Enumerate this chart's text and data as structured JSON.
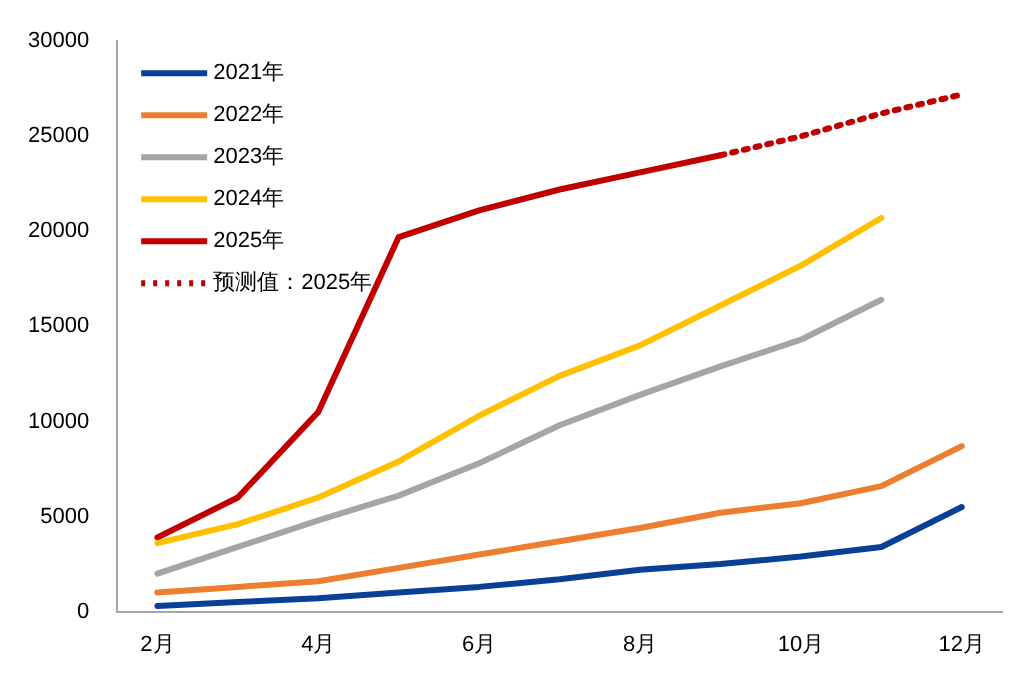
{
  "chart_data": {
    "type": "line",
    "categories": [
      "2月",
      null,
      "4月",
      null,
      "6月",
      null,
      "8月",
      null,
      "10月",
      null,
      "12月"
    ],
    "ylim": [
      0,
      30000
    ],
    "yticks": [
      0,
      5000,
      10000,
      15000,
      20000,
      25000,
      30000
    ],
    "grid": false,
    "legend": "top left",
    "marker": "none",
    "series": [
      {
        "name": "2021年",
        "color": "#0a3f96",
        "values": [
          300,
          500,
          700,
          1000,
          1300,
          1700,
          2200,
          2500,
          2900,
          3400,
          5500
        ]
      },
      {
        "name": "2022年",
        "color": "#ed7d31",
        "values": [
          1000,
          1300,
          1600,
          2300,
          3000,
          3700,
          4400,
          5200,
          5700,
          6600,
          8700
        ]
      },
      {
        "name": "2023年",
        "color": "#a5a5a5",
        "values": [
          2000,
          3400,
          4800,
          6100,
          7800,
          9800,
          11400,
          12900,
          14300,
          16400,
          null
        ]
      },
      {
        "name": "2024年",
        "color": "#ffc000",
        "values": [
          3600,
          4600,
          6000,
          7900,
          10300,
          12400,
          14000,
          16100,
          18200,
          20700,
          null
        ]
      },
      {
        "name": "2025年",
        "color": "#c00000",
        "values": [
          3900,
          6000,
          10500,
          19700,
          21100,
          22200,
          23100,
          24000,
          null,
          null,
          null
        ]
      },
      {
        "name": "预测值：2025年",
        "color": "#c00000",
        "line_style": "dotted",
        "values": [
          null,
          null,
          null,
          null,
          null,
          null,
          null,
          24000,
          25000,
          26200,
          27200
        ]
      }
    ]
  }
}
